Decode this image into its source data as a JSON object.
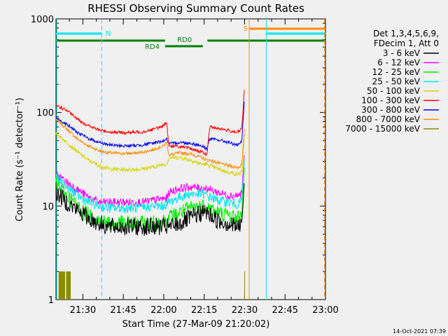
{
  "chart_data": {
    "type": "line",
    "title": "RHESSI Observing Summary Count Rates",
    "xlabel": "Start Time (27-Mar-09 21:20:02)",
    "ylabel": "Count Rate (s⁻¹ detector⁻¹)",
    "yscale": "log",
    "ylim": [
      1,
      1000
    ],
    "xlim": [
      "21:20:02",
      "23:00:00"
    ],
    "x_ticks": [
      "21:30",
      "21:45",
      "22:00",
      "22:15",
      "22:30",
      "22:45",
      "23:00"
    ],
    "y_ticks": [
      "1",
      "10",
      "100",
      "1000"
    ],
    "grid": false,
    "legend_position": "right",
    "legend_header": [
      "Det 1,3,4,5,6,9,",
      "FDecim 1, Att 0"
    ],
    "timestamp": "14-Oct-2021 07:39",
    "x_times": [
      "21:20",
      "21:24",
      "21:28",
      "21:32",
      "21:36",
      "21:40",
      "21:44",
      "21:48",
      "21:52",
      "21:56",
      "22:00",
      "22:01",
      "22:02",
      "22:06",
      "22:10",
      "22:14",
      "22:16",
      "22:17",
      "22:20",
      "22:24",
      "22:27",
      "22:28",
      "22:29",
      "22:30"
    ],
    "series": [
      {
        "name": "3 - 6 keV",
        "color": "#000000",
        "values": [
          14,
          11,
          9,
          7.5,
          6.5,
          6,
          6,
          6,
          6,
          6,
          6,
          6,
          6,
          6.5,
          7.5,
          8.5,
          8.5,
          8,
          7,
          6.5,
          6,
          6,
          7,
          20
        ]
      },
      {
        "name": "6 - 12 keV",
        "color": "#ff00ff",
        "values": [
          22,
          18,
          15,
          12.5,
          11,
          11,
          11,
          11,
          11,
          11.5,
          12,
          12,
          14,
          15.5,
          16,
          15.5,
          15.5,
          15,
          14,
          13,
          13,
          13,
          14,
          40
        ]
      },
      {
        "name": "12 - 25 keV",
        "color": "#00ee00",
        "values": [
          17,
          13,
          10,
          8,
          7,
          6.5,
          6.5,
          6.5,
          6.5,
          6.5,
          7,
          7,
          7.5,
          8.5,
          9.5,
          10,
          10,
          9.5,
          8.5,
          8,
          7.5,
          7.5,
          9,
          30
        ]
      },
      {
        "name": "25 - 50 keV",
        "color": "#00e5ee",
        "values": [
          20,
          16,
          13,
          11,
          10,
          9.5,
          9.5,
          9.5,
          9.5,
          10,
          10,
          10.5,
          11,
          12.5,
          13.5,
          13.5,
          13,
          12.5,
          11.5,
          11,
          10.5,
          10.5,
          12,
          35
        ]
      },
      {
        "name": "50 - 100 keV",
        "color": "#d4d400",
        "values": [
          60,
          48,
          38,
          31,
          27,
          25,
          24.5,
          24.5,
          25,
          26,
          28,
          28,
          33,
          33,
          31,
          28,
          28,
          27,
          25,
          23,
          22,
          22,
          24,
          60
        ]
      },
      {
        "name": "100 - 300 keV",
        "color": "#ff0000",
        "values": [
          120,
          105,
          85,
          72,
          65,
          62,
          61,
          61,
          62,
          66,
          72,
          80,
          44,
          43,
          41,
          38,
          35,
          70,
          68,
          64,
          62,
          62,
          70,
          200
        ]
      },
      {
        "name": "300 - 800 keV",
        "color": "#0000ee",
        "values": [
          88,
          75,
          61,
          53,
          48,
          45,
          44,
          44,
          45,
          47,
          50,
          52,
          46,
          48,
          47,
          44,
          41,
          52,
          51,
          48,
          45,
          45,
          50,
          150
        ]
      },
      {
        "name": "800 - 7000 keV",
        "color": "#ff8c00",
        "values": [
          85,
          67,
          52,
          44,
          39,
          37,
          36.5,
          36.5,
          37.5,
          40,
          44,
          48,
          35,
          37,
          36,
          33,
          31,
          31,
          29,
          27,
          26,
          26,
          28,
          75
        ]
      },
      {
        "name": "7000 - 15000 keV",
        "color": "#8b8b00",
        "values": null
      }
    ],
    "annotations": [
      {
        "label": "N",
        "color": "#00e5ee"
      },
      {
        "label": "RD0",
        "color": "#008000"
      },
      {
        "label": "RD4",
        "color": "#008000"
      },
      {
        "label": "S",
        "color": "#ff8c00"
      }
    ]
  }
}
